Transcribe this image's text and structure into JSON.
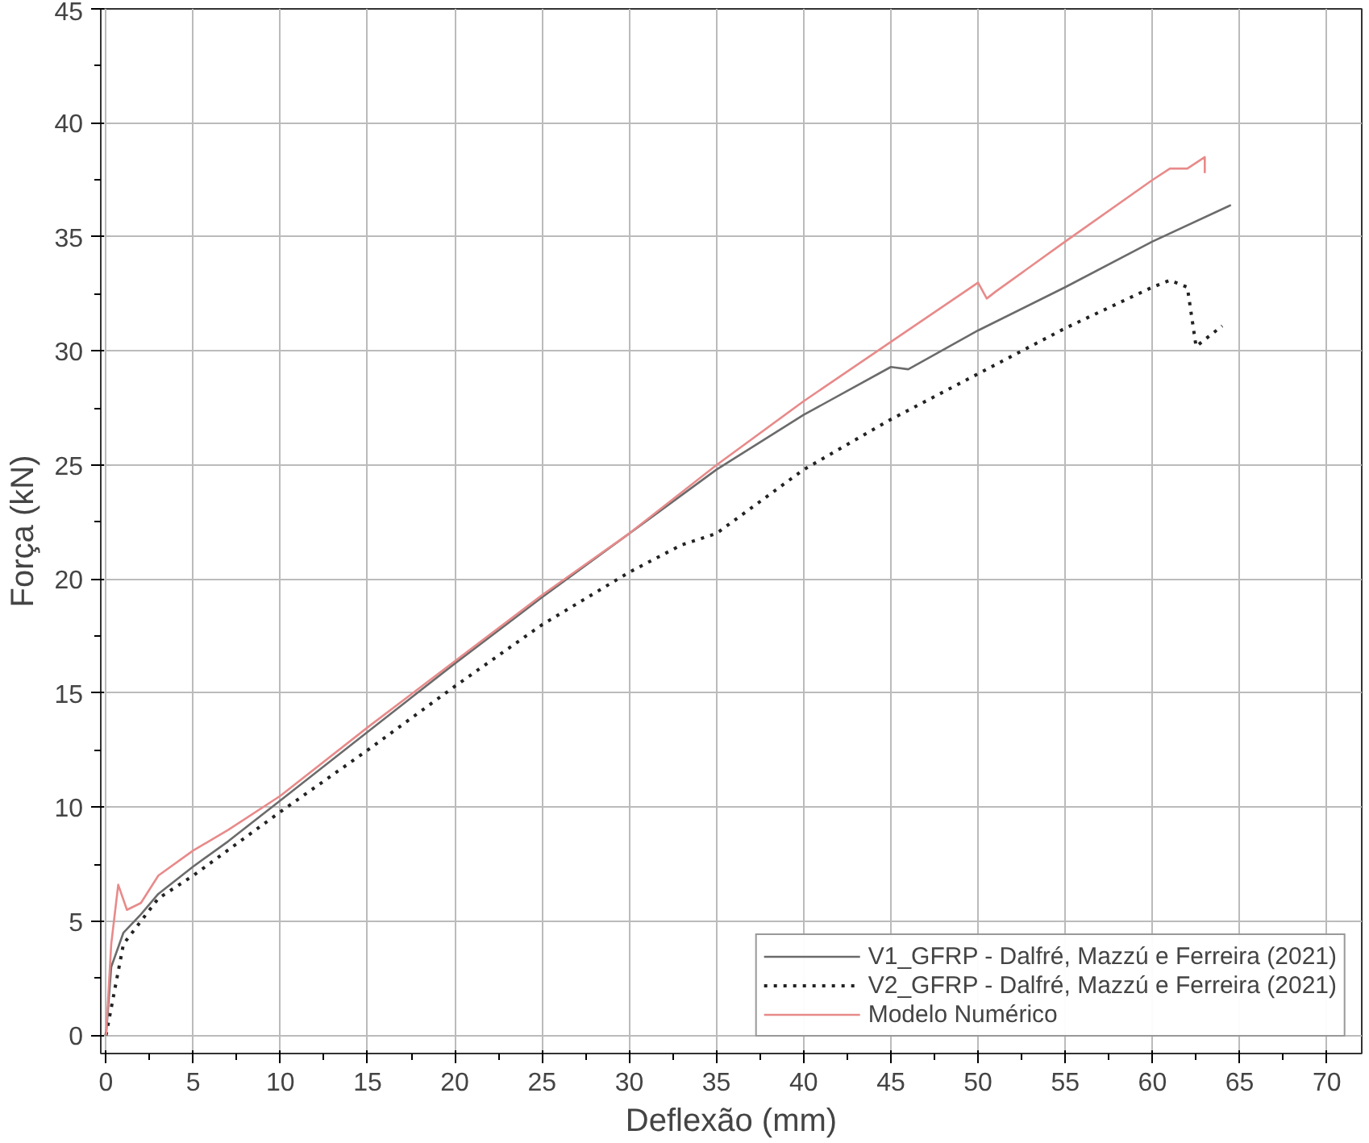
{
  "chart_data": {
    "type": "line",
    "xlabel": "Deflexão (mm)",
    "ylabel": "Força (kN)",
    "xlim": [
      -0.3,
      72
    ],
    "ylim": [
      -0.8,
      45
    ],
    "xticks": [
      0,
      5,
      10,
      15,
      20,
      25,
      30,
      35,
      40,
      45,
      50,
      55,
      60,
      65,
      70
    ],
    "yticks": [
      0,
      5,
      10,
      15,
      20,
      25,
      30,
      35,
      40,
      45
    ],
    "grid": true,
    "legend": "bottom right",
    "marker": "none",
    "series": [
      {
        "name": "V1_GFRP - Dalfré, Mazzú e Ferreira (2021)",
        "color": "#6b6b6b",
        "line_style": "solid",
        "x": [
          0,
          0.3,
          1,
          2,
          3,
          5,
          7,
          10,
          15,
          20,
          25,
          30,
          35,
          40,
          45,
          46,
          50,
          55,
          60,
          64.5
        ],
        "values": [
          0,
          3,
          4.5,
          5.3,
          6.2,
          7.4,
          8.5,
          10.3,
          13.3,
          16.3,
          19.2,
          22,
          24.8,
          27.2,
          29.3,
          29.2,
          30.9,
          32.8,
          34.8,
          36.4
        ]
      },
      {
        "name": "V2_GFRP - Dalfré, Mazzú e Ferreira (2021)",
        "color": "#222222",
        "line_style": "dotted",
        "x": [
          0,
          0.5,
          1,
          2,
          3,
          5,
          10,
          15,
          20,
          25,
          30,
          33,
          35,
          40,
          45,
          50,
          55,
          60,
          61,
          62,
          62.5,
          64
        ],
        "values": [
          0,
          2,
          4,
          5,
          6,
          7,
          9.8,
          12.5,
          15.3,
          18,
          20.3,
          21.5,
          22,
          24.8,
          27,
          29,
          31,
          32.8,
          33.1,
          32.8,
          30.2,
          31.1
        ]
      },
      {
        "name": "Modelo Numérico",
        "color": "#e88a8a",
        "line_style": "solid",
        "x": [
          0,
          0.3,
          0.7,
          1.2,
          2,
          3,
          5,
          7,
          10,
          15,
          20,
          25,
          30,
          35,
          40,
          45,
          50,
          50.5,
          51,
          55,
          60,
          61,
          62,
          63,
          63
        ],
        "values": [
          0,
          4,
          6.6,
          5.5,
          5.8,
          7,
          8.1,
          9,
          10.5,
          13.5,
          16.4,
          19.3,
          22,
          25,
          27.8,
          30.4,
          33,
          32.3,
          32.6,
          34.8,
          37.5,
          38,
          38,
          38.5,
          37.8
        ]
      }
    ]
  }
}
